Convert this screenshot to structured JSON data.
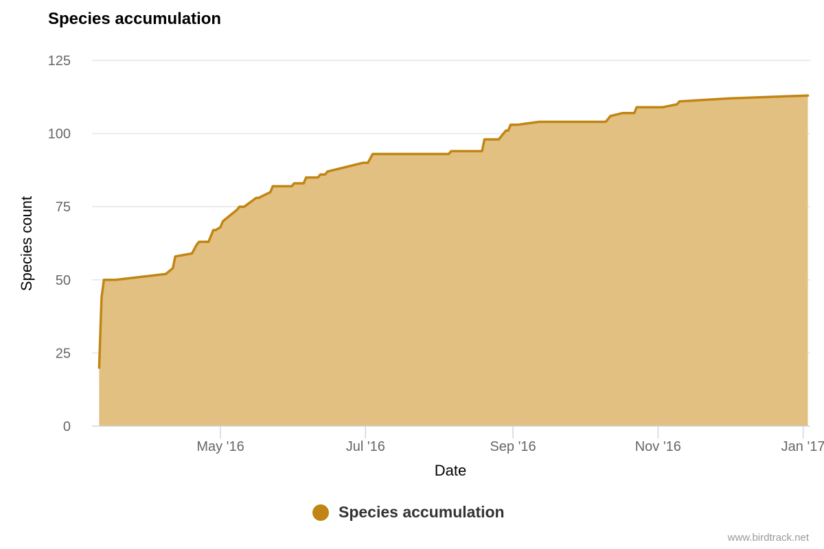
{
  "chart_data": {
    "type": "area",
    "title": "Species accumulation",
    "xlabel": "Date",
    "ylabel": "Species count",
    "ylim": [
      0,
      125
    ],
    "yticks": [
      "0",
      "25",
      "50",
      "75",
      "100",
      "125"
    ],
    "xticks": [
      {
        "date": "2016-05-01",
        "label": "May '16"
      },
      {
        "date": "2016-07-01",
        "label": "Jul '16"
      },
      {
        "date": "2016-09-01",
        "label": "Sep '16"
      },
      {
        "date": "2016-11-01",
        "label": "Nov '16"
      },
      {
        "date": "2017-01-01",
        "label": "Jan '17"
      }
    ],
    "xlim": [
      "2016-03-08",
      "2017-01-04"
    ],
    "grid": true,
    "legend_position": "bottom-center",
    "series": [
      {
        "name": "Species accumulation",
        "color": "#c08513",
        "fill": "#e2c081",
        "x": [
          "2016-03-11",
          "2016-03-12",
          "2016-03-13",
          "2016-03-17",
          "2016-03-18",
          "2016-04-08",
          "2016-04-11",
          "2016-04-12",
          "2016-04-19",
          "2016-04-21",
          "2016-04-22",
          "2016-04-26",
          "2016-04-28",
          "2016-04-29",
          "2016-05-01",
          "2016-05-02",
          "2016-05-08",
          "2016-05-09",
          "2016-05-11",
          "2016-05-16",
          "2016-05-17",
          "2016-05-22",
          "2016-05-23",
          "2016-05-31",
          "2016-06-01",
          "2016-06-05",
          "2016-06-06",
          "2016-06-11",
          "2016-06-12",
          "2016-06-14",
          "2016-06-15",
          "2016-06-30",
          "2016-07-02",
          "2016-07-04",
          "2016-08-05",
          "2016-08-06",
          "2016-08-19",
          "2016-08-20",
          "2016-08-26",
          "2016-08-28",
          "2016-08-29",
          "2016-08-30",
          "2016-08-31",
          "2016-09-02",
          "2016-09-03",
          "2016-09-12",
          "2016-09-14",
          "2016-10-10",
          "2016-10-12",
          "2016-10-17",
          "2016-10-22",
          "2016-10-23",
          "2016-11-03",
          "2016-11-09",
          "2016-11-10",
          "2016-12-01",
          "2017-01-03"
        ],
        "y": [
          20,
          44,
          50,
          50,
          50,
          52,
          54,
          58,
          59,
          62,
          63,
          63,
          67,
          67,
          68,
          70,
          74,
          75,
          75,
          78,
          78,
          80,
          82,
          82,
          83,
          83,
          85,
          85,
          86,
          86,
          87,
          90,
          90,
          93,
          93,
          94,
          94,
          98,
          98,
          100,
          101,
          101,
          103,
          103,
          103,
          104,
          104,
          104,
          106,
          107,
          107,
          109,
          109,
          110,
          111,
          112,
          113
        ]
      }
    ]
  },
  "legend": {
    "label": "Species accumulation"
  },
  "credit": "www.birdtrack.net"
}
